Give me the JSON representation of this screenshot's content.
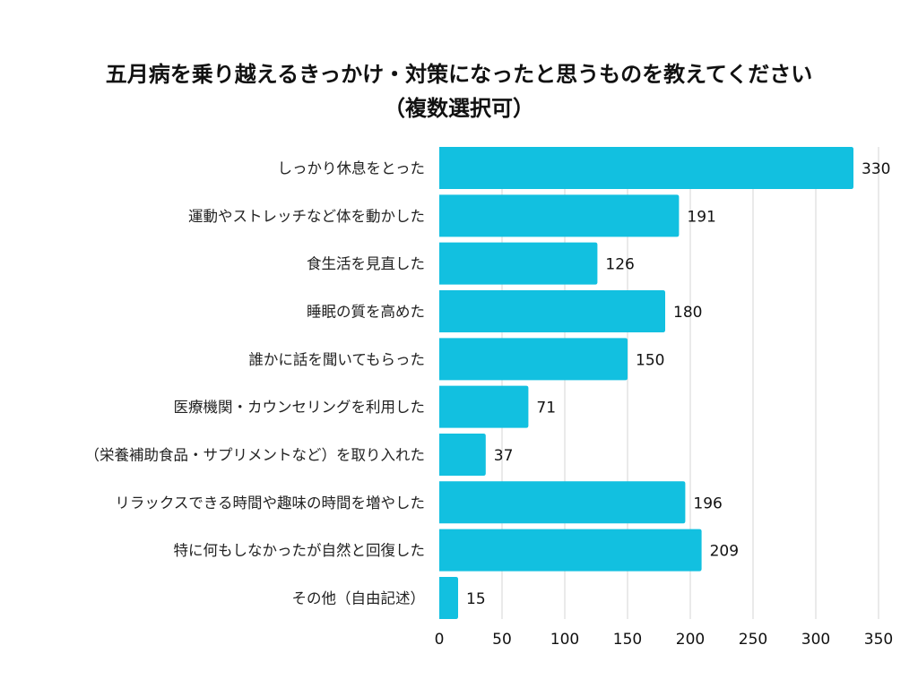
{
  "chart_data": {
    "type": "bar",
    "orientation": "horizontal",
    "title": "五月病を乗り越えるきっかけ・対策になったと思うものを教えてください",
    "subtitle": "（複数選択可）",
    "categories": [
      "しっかり休息をとった",
      "運動やストレッチなど体を動かした",
      "食生活を見直した",
      "睡眠の質を高めた",
      "誰かに話を聞いてもらった",
      "医療機関・カウンセリングを利用した",
      "（栄養補助食品・サプリメントなど）を取り入れた",
      "リラックスできる時間や趣味の時間を増やした",
      "特に何もしなかったが自然と回復した",
      "その他（自由記述）"
    ],
    "values": [
      330,
      191,
      126,
      180,
      150,
      71,
      37,
      196,
      209,
      15
    ],
    "value_labels": [
      "330",
      "191",
      "126",
      "180",
      "150",
      "71",
      "37",
      "196",
      "209",
      "15"
    ],
    "xlabel": "",
    "ylabel": "",
    "xlim": [
      0,
      350
    ],
    "x_ticks": [
      0,
      50,
      100,
      150,
      200,
      250,
      300,
      350
    ],
    "x_tick_labels": [
      "0",
      "50",
      "100",
      "150",
      "200",
      "250",
      "300",
      "350"
    ],
    "grid": true,
    "legend": "none",
    "bar_color": "#12C0E0",
    "grid_color": "#D6D6D6"
  }
}
